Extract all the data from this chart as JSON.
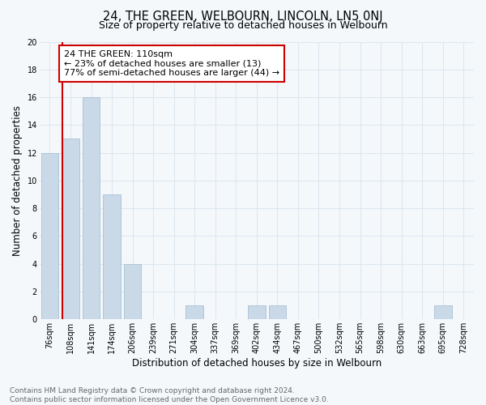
{
  "title": "24, THE GREEN, WELBOURN, LINCOLN, LN5 0NJ",
  "subtitle": "Size of property relative to detached houses in Welbourn",
  "xlabel": "Distribution of detached houses by size in Welbourn",
  "ylabel": "Number of detached properties",
  "categories": [
    "76sqm",
    "108sqm",
    "141sqm",
    "174sqm",
    "206sqm",
    "239sqm",
    "271sqm",
    "304sqm",
    "337sqm",
    "369sqm",
    "402sqm",
    "434sqm",
    "467sqm",
    "500sqm",
    "532sqm",
    "565sqm",
    "598sqm",
    "630sqm",
    "663sqm",
    "695sqm",
    "728sqm"
  ],
  "values": [
    12,
    13,
    16,
    9,
    4,
    0,
    0,
    1,
    0,
    0,
    1,
    1,
    0,
    0,
    0,
    0,
    0,
    0,
    0,
    1,
    0
  ],
  "bar_color": "#c9d9e8",
  "bar_edge_color": "#a8c0d4",
  "vline_color": "#cc0000",
  "vline_pos": 0.6,
  "annotation_text": "24 THE GREEN: 110sqm\n← 23% of detached houses are smaller (13)\n77% of semi-detached houses are larger (44) →",
  "annotation_box_facecolor": "#ffffff",
  "annotation_box_edgecolor": "#cc0000",
  "ylim": [
    0,
    20
  ],
  "yticks": [
    0,
    2,
    4,
    6,
    8,
    10,
    12,
    14,
    16,
    18,
    20
  ],
  "footer_line1": "Contains HM Land Registry data © Crown copyright and database right 2024.",
  "footer_line2": "Contains public sector information licensed under the Open Government Licence v3.0.",
  "background_color": "#f5f8fb",
  "grid_color": "#dde6f0",
  "title_fontsize": 10.5,
  "subtitle_fontsize": 9,
  "xlabel_fontsize": 8.5,
  "ylabel_fontsize": 8.5,
  "tick_fontsize": 7,
  "annotation_fontsize": 8,
  "footer_fontsize": 6.5,
  "footer_color": "#666666"
}
